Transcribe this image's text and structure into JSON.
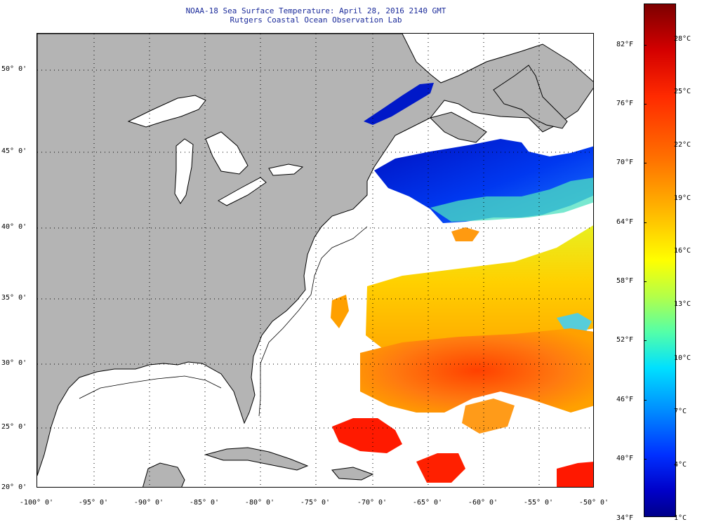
{
  "title": {
    "line1": "NOAA-18 Sea Surface Temperature:  April 28, 2016 2140 GMT",
    "line2": "Rutgers Coastal Ocean Observation Lab"
  },
  "map": {
    "region": "Northwest Atlantic",
    "lon_range": [
      -100,
      -50
    ],
    "lat_range": [
      20,
      52.5
    ],
    "land_color": "#b4b4b4",
    "no_data_color": "#ffffff",
    "graticule": "dotted",
    "lat_labels": [
      "50° 0'",
      "45° 0'",
      "40° 0'",
      "35° 0'",
      "30° 0'",
      "25° 0'",
      "20° 0'"
    ],
    "lon_labels": [
      "-100° 0'",
      "-95° 0'",
      "-90° 0'",
      "-85° 0'",
      "-80° 0'",
      "-75° 0'",
      "-70° 0'",
      "-65° 0'",
      "-60° 0'",
      "-55° 0'",
      "-50° 0'"
    ]
  },
  "colorbar": {
    "fahrenheit_labels": [
      "82°F",
      "76°F",
      "70°F",
      "64°F",
      "58°F",
      "52°F",
      "46°F",
      "40°F",
      "34°F"
    ],
    "celsius_labels": [
      "28°C",
      "25°C",
      "22°C",
      "19°C",
      "16°C",
      "13°C",
      "10°C",
      "7°C",
      "4°C",
      "1°C"
    ],
    "range_celsius": [
      1,
      30
    ]
  }
}
